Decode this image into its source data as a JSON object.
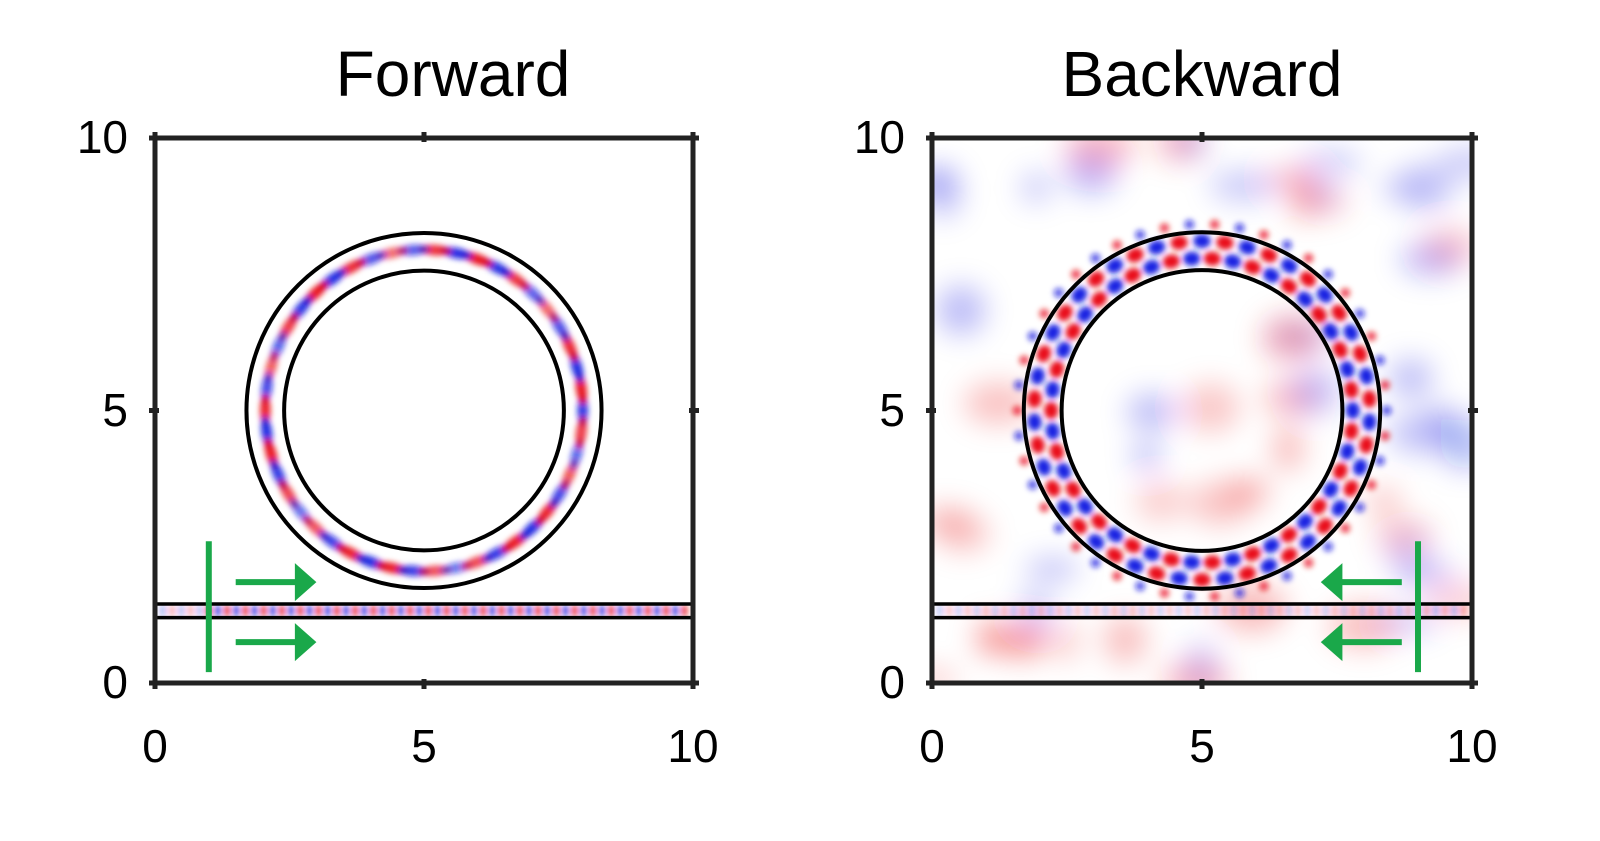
{
  "chart_data": [
    {
      "type": "heatmap",
      "title": "Forward",
      "xlabel": "",
      "ylabel": "",
      "xlim": [
        0,
        10
      ],
      "ylim": [
        0,
        10
      ],
      "x_ticks": [
        "0",
        "5",
        "10"
      ],
      "y_ticks": [
        "0",
        "5",
        "10"
      ],
      "colormap": {
        "positive": "#e8000a",
        "negative": "#0a14e0",
        "zero": "#ffffff"
      },
      "ring": {
        "center": [
          5,
          5
        ],
        "inner_radius": 2.6,
        "outer_radius": 3.3,
        "lobes": 46,
        "field_amplitude": "weak"
      },
      "waveguide": {
        "y_bottom": 1.2,
        "y_top": 1.45,
        "x_range": [
          0,
          10
        ]
      },
      "source": {
        "x": 1.0,
        "y_range": [
          0.2,
          2.6
        ]
      },
      "arrows": {
        "direction": "right",
        "x_range": [
          1.5,
          3.0
        ],
        "y_values": [
          1.85,
          0.75
        ],
        "color": "#1aa84a"
      }
    },
    {
      "type": "heatmap",
      "title": "Backward",
      "xlabel": "",
      "ylabel": "",
      "xlim": [
        0,
        10
      ],
      "ylim": [
        0,
        10
      ],
      "x_ticks": [
        "0",
        "5",
        "10"
      ],
      "y_ticks": [
        "0",
        "5",
        "10"
      ],
      "colormap": {
        "positive": "#e8000a",
        "negative": "#0a14e0",
        "zero": "#ffffff"
      },
      "ring": {
        "center": [
          5,
          5
        ],
        "inner_radius": 2.6,
        "outer_radius": 3.3,
        "lobes": 46,
        "field_amplitude": "strong"
      },
      "waveguide": {
        "y_bottom": 1.2,
        "y_top": 1.45,
        "x_range": [
          0,
          10
        ]
      },
      "source": {
        "x": 9.0,
        "y_range": [
          0.2,
          2.6
        ]
      },
      "arrows": {
        "direction": "left",
        "x_range": [
          7.2,
          8.7
        ],
        "y_values": [
          1.85,
          0.75
        ],
        "color": "#1aa84a"
      }
    }
  ]
}
